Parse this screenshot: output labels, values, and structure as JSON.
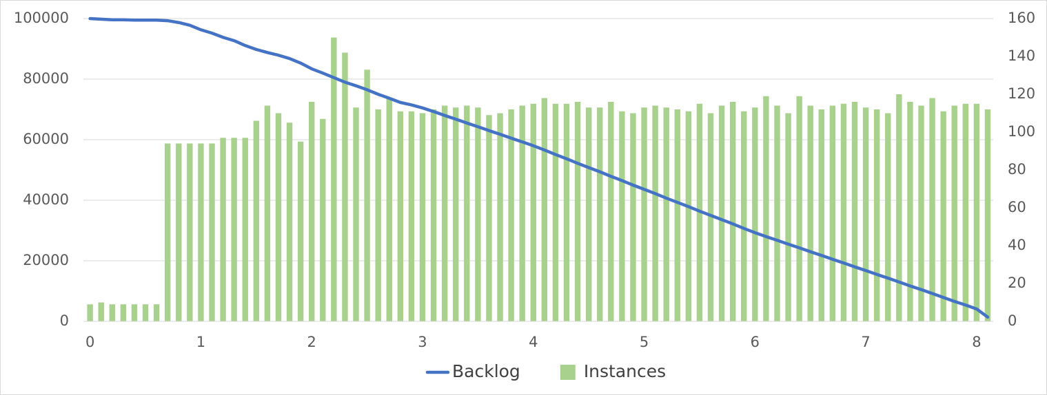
{
  "chart_data": {
    "type": "combo",
    "x": [
      0,
      0.1,
      0.2,
      0.3,
      0.4,
      0.5,
      0.6,
      0.7,
      0.8,
      0.9,
      1,
      1.1,
      1.2,
      1.3,
      1.4,
      1.5,
      1.6,
      1.7,
      1.8,
      1.9,
      2,
      2.1,
      2.2,
      2.3,
      2.4,
      2.5,
      2.6,
      2.7,
      2.8,
      2.9,
      3,
      3.1,
      3.2,
      3.3,
      3.4,
      3.5,
      3.6,
      3.7,
      3.8,
      3.9,
      4,
      4.1,
      4.2,
      4.3,
      4.4,
      4.5,
      4.6,
      4.7,
      4.8,
      4.9,
      5,
      5.1,
      5.2,
      5.3,
      5.4,
      5.5,
      5.6,
      5.7,
      5.8,
      5.9,
      6,
      6.1,
      6.2,
      6.3,
      6.4,
      6.5,
      6.6,
      6.7,
      6.8,
      6.9,
      7,
      7.1,
      7.2,
      7.3,
      7.4,
      7.5,
      7.6,
      7.7,
      7.8,
      7.9,
      8,
      8.1
    ],
    "series": [
      {
        "name": "Backlog",
        "type": "line",
        "color": "#4472c4",
        "values": [
          100000,
          99800,
          99600,
          99600,
          99500,
          99500,
          99500,
          99300,
          98700,
          97800,
          96300,
          95200,
          93800,
          92700,
          91100,
          89800,
          88800,
          87900,
          86800,
          85300,
          83400,
          82000,
          80500,
          79000,
          77800,
          76500,
          75000,
          73700,
          72300,
          71500,
          70500,
          69300,
          68000,
          66800,
          65500,
          64300,
          63000,
          61800,
          60500,
          59300,
          58000,
          56600,
          55100,
          53700,
          52200,
          50800,
          49400,
          47900,
          46500,
          45000,
          43600,
          42200,
          40700,
          39300,
          37900,
          36400,
          35000,
          33600,
          32200,
          30700,
          29300,
          28000,
          26800,
          25500,
          24300,
          23000,
          21800,
          20500,
          19300,
          18000,
          16800,
          15500,
          14300,
          13000,
          11700,
          10500,
          9200,
          7900,
          6600,
          5400,
          4100,
          1400
        ]
      },
      {
        "name": "Instances",
        "type": "bar",
        "axis": "y2",
        "color": "#a9d18e",
        "values": [
          9,
          10,
          9,
          9,
          9,
          9,
          9,
          94,
          94,
          94,
          94,
          94,
          97,
          97,
          97,
          106,
          114,
          110,
          105,
          95,
          116,
          107,
          150,
          142,
          113,
          133,
          112,
          118,
          111,
          111,
          110,
          112,
          114,
          113,
          114,
          113,
          109,
          110,
          112,
          114,
          115,
          118,
          115,
          115,
          116,
          113,
          113,
          116,
          111,
          110,
          113,
          114,
          113,
          112,
          111,
          115,
          110,
          114,
          116,
          111,
          113,
          119,
          114,
          110,
          119,
          114,
          112,
          114,
          115,
          116,
          113,
          112,
          110,
          120,
          116,
          114,
          118,
          111,
          114,
          115,
          115,
          112
        ]
      }
    ],
    "xlim": [
      -0.06,
      8.15
    ],
    "xticks": [
      0,
      1,
      2,
      3,
      4,
      5,
      6,
      7,
      8
    ],
    "ylim": [
      0,
      100000
    ],
    "yticks": [
      0,
      20000,
      40000,
      60000,
      80000,
      100000
    ],
    "y2lim": [
      0,
      160
    ],
    "y2ticks": [
      0,
      20,
      40,
      60,
      80,
      100,
      120,
      140,
      160
    ],
    "grid": true,
    "legend": "bottom"
  }
}
